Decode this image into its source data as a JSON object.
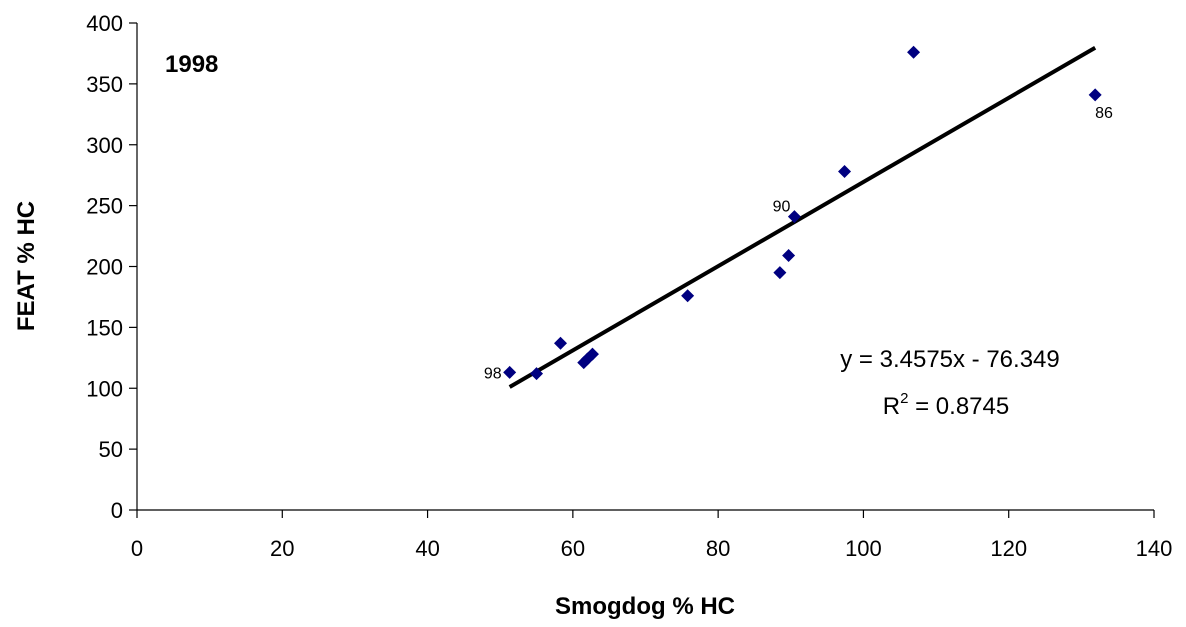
{
  "chart_data": {
    "type": "scatter",
    "title": "1998",
    "xlabel": "Smogdog % HC",
    "ylabel": "FEAT % HC",
    "xlim": [
      0,
      140
    ],
    "ylim": [
      0,
      400
    ],
    "x_ticks": [
      "0",
      "20",
      "40",
      "60",
      "80",
      "100",
      "120",
      "140"
    ],
    "y_ticks": [
      "0",
      "50",
      "100",
      "150",
      "200",
      "250",
      "300",
      "350",
      "400"
    ],
    "grid": false,
    "legend": "none",
    "series": [
      {
        "color": "#000080",
        "marker": "diamond",
        "points": [
          {
            "x": 51.3,
            "y": 113,
            "label": "98"
          },
          {
            "x": 55.0,
            "y": 112
          },
          {
            "x": 58.3,
            "y": 137
          },
          {
            "x": 61.5,
            "y": 121
          },
          {
            "x": 62.0,
            "y": 124
          },
          {
            "x": 62.7,
            "y": 128
          },
          {
            "x": 75.8,
            "y": 176
          },
          {
            "x": 88.5,
            "y": 195
          },
          {
            "x": 89.7,
            "y": 209
          },
          {
            "x": 90.5,
            "y": 241,
            "label": "90"
          },
          {
            "x": 97.4,
            "y": 278
          },
          {
            "x": 106.9,
            "y": 376
          },
          {
            "x": 131.9,
            "y": 341,
            "label": "86"
          }
        ]
      }
    ],
    "trendline": {
      "type": "linear",
      "slope": 3.4575,
      "intercept": -76.349,
      "x_range": [
        51.3,
        131.9
      ],
      "color": "#000000",
      "equation": "y = 3.4575x - 76.349",
      "r2_prefix": "R",
      "r2_exponent": "2",
      "r2_value": " = 0.8745"
    }
  }
}
